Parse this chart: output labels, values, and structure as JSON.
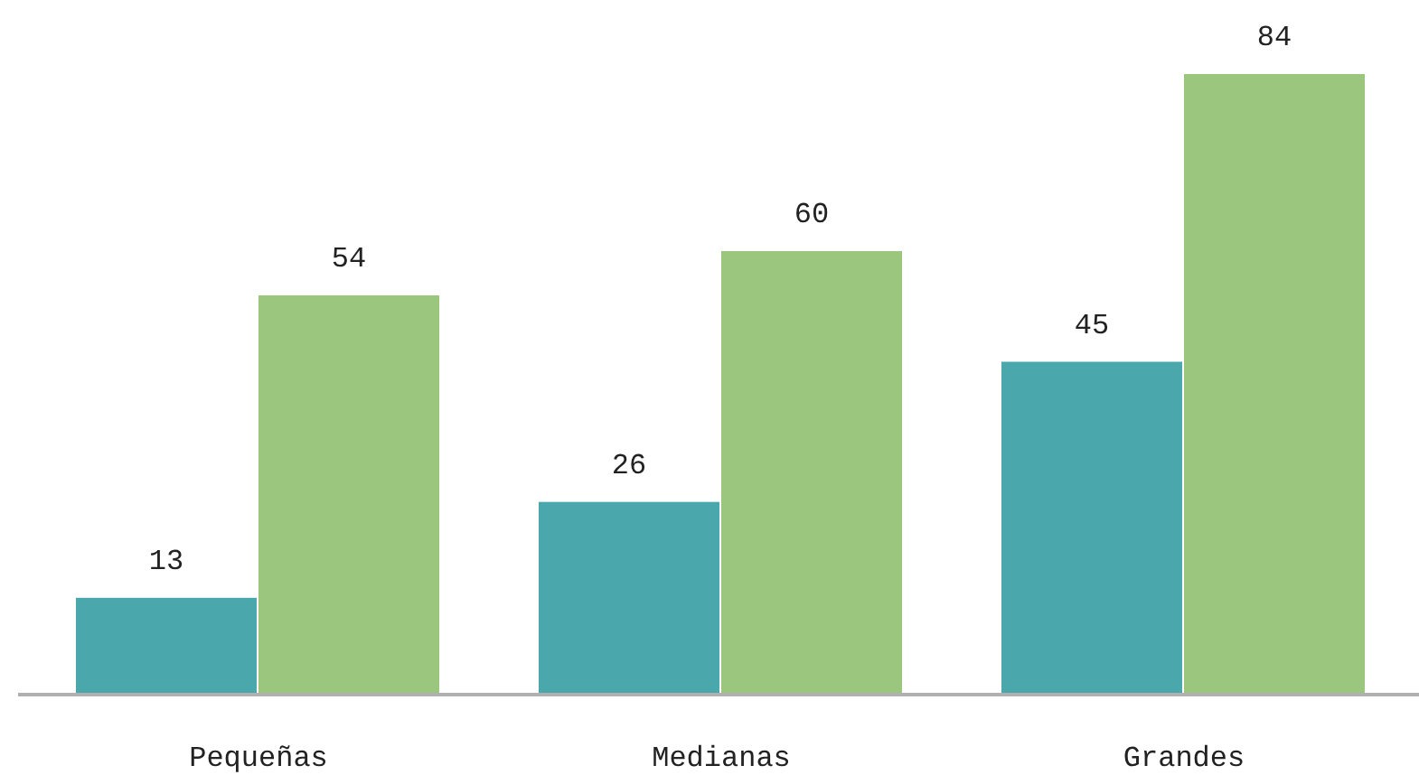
{
  "chart_data": {
    "type": "bar",
    "categories": [
      "Pequeñas",
      "Medianas",
      "Grandes"
    ],
    "series": [
      {
        "color": "#4aa7ab",
        "values": [
          13,
          26,
          45
        ]
      },
      {
        "color": "#9ac77d",
        "values": [
          54,
          60,
          84
        ]
      }
    ],
    "data_labels": true
  }
}
